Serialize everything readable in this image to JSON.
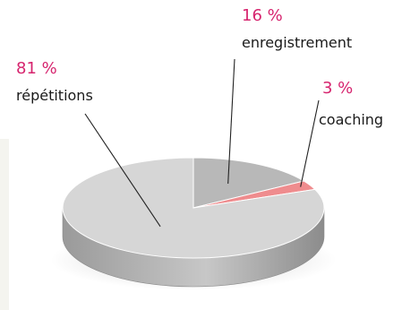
{
  "chart_data": {
    "type": "pie",
    "title": "",
    "slices": [
      {
        "label": "répétitions",
        "value": 81,
        "value_label": "81 %",
        "color": "#d6d6d6"
      },
      {
        "label": "enregistrement",
        "value": 16,
        "value_label": "16 %",
        "color": "#b8b8b8"
      },
      {
        "label": "coaching",
        "value": 3,
        "value_label": "3 %",
        "color": "#ef8c8e"
      }
    ],
    "label_color": "#d6246e",
    "style": "3d",
    "legend": "none"
  }
}
